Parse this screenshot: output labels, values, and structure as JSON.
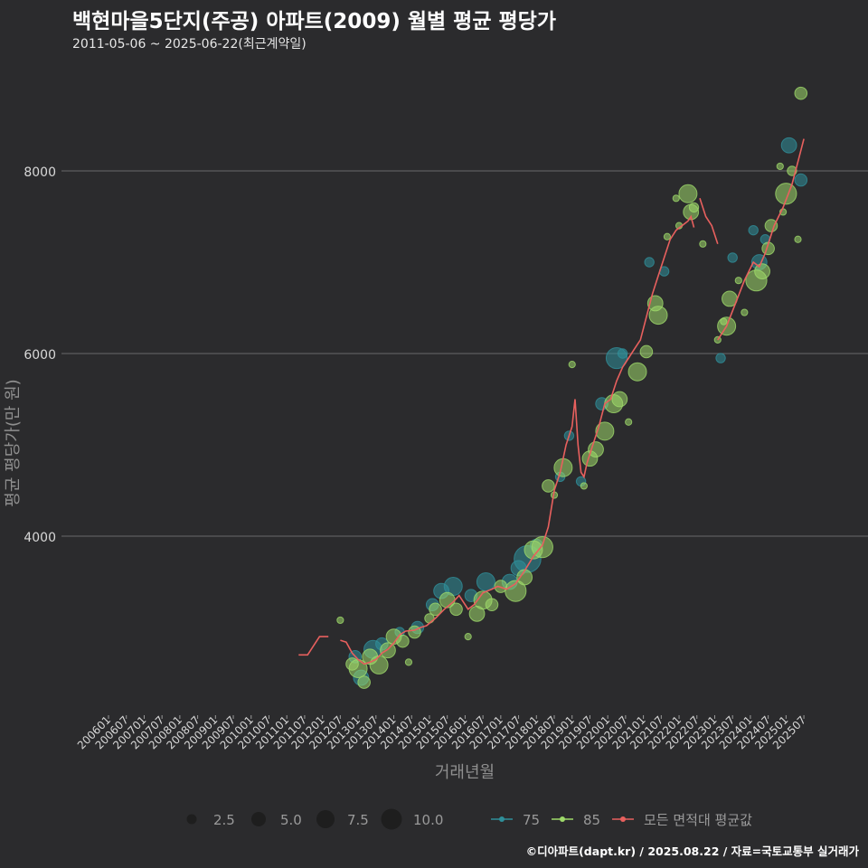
{
  "title": "백현마을5단지(주공) 아파트(2009) 월별 평균 평당가",
  "subtitle": "2011-05-06 ~ 2025-06-22(최근계약일)",
  "caption": "©디아파트(dapt.kr) / 2025.08.22 / 자료=국토교통부 실거래가",
  "colors": {
    "background": "#2b2b2d",
    "grid": "#6a6a6a",
    "area75": "#2f8f9a",
    "area85": "#9ed96a",
    "average_line": "#e8605e",
    "size_legend": "#1e1e1e"
  },
  "chart_data": {
    "type": "scatter",
    "xlabel": "거래년월",
    "ylabel": "평균 평당가(만 원)",
    "ylim": [
      2000,
      9000
    ],
    "yticks": [
      4000,
      6000,
      8000
    ],
    "x_tick_labels": [
      "200601",
      "200607",
      "200701",
      "200707",
      "200801",
      "200807",
      "200901",
      "200907",
      "201001",
      "201007",
      "201101",
      "201107",
      "201201",
      "201207",
      "201301",
      "201307",
      "201401",
      "201407",
      "201501",
      "201507",
      "201601",
      "201607",
      "201701",
      "201707",
      "201801",
      "201807",
      "201901",
      "201907",
      "202001",
      "202007",
      "202101",
      "202107",
      "202201",
      "202207",
      "202301",
      "202307",
      "202401",
      "202407",
      "202501",
      "202507"
    ],
    "size_legend": {
      "title": "",
      "values": [
        2.5,
        5.0,
        7.5,
        10.0
      ],
      "labels": [
        "2.5",
        "5.0",
        "7.5",
        "10.0"
      ]
    },
    "legend": {
      "position": "bottom",
      "labels": [
        "75",
        "85",
        "모든 면적대 평균값"
      ]
    },
    "series": [
      {
        "name": "75",
        "kind": "points",
        "points": [
          [
            "2012-12",
            2680,
            3
          ],
          [
            "2013-02",
            2450,
            4
          ],
          [
            "2013-06",
            2760,
            5
          ],
          [
            "2013-09",
            2820,
            3
          ],
          [
            "2014-03",
            2950,
            2
          ],
          [
            "2014-09",
            3000,
            3
          ],
          [
            "2015-02",
            3250,
            3
          ],
          [
            "2015-05",
            3400,
            4
          ],
          [
            "2015-09",
            3450,
            5
          ],
          [
            "2016-03",
            3350,
            3
          ],
          [
            "2016-08",
            3500,
            5
          ],
          [
            "2017-04",
            3500,
            4
          ],
          [
            "2017-07",
            3650,
            4
          ],
          [
            "2017-10",
            3750,
            8
          ],
          [
            "2018-01",
            3900,
            3
          ],
          [
            "2018-09",
            4650,
            2
          ],
          [
            "2018-12",
            5100,
            2
          ],
          [
            "2019-04",
            4600,
            2
          ],
          [
            "2019-11",
            5450,
            3
          ],
          [
            "2020-04",
            5950,
            6
          ],
          [
            "2020-06",
            6000,
            2
          ],
          [
            "2021-03",
            7000,
            2
          ],
          [
            "2021-08",
            6900,
            2
          ],
          [
            "2023-03",
            5950,
            2
          ],
          [
            "2023-07",
            7050,
            2
          ],
          [
            "2024-02",
            7350,
            2
          ],
          [
            "2024-04",
            7000,
            4
          ],
          [
            "2024-06",
            7250,
            2
          ],
          [
            "2025-02",
            8280,
            4
          ],
          [
            "2025-06",
            7900,
            3
          ]
        ]
      },
      {
        "name": "85",
        "kind": "points",
        "points": [
          [
            "2012-07",
            3080,
            1
          ],
          [
            "2012-11",
            2600,
            3
          ],
          [
            "2013-01",
            2550,
            5
          ],
          [
            "2013-03",
            2400,
            3
          ],
          [
            "2013-05",
            2680,
            4
          ],
          [
            "2013-08",
            2590,
            5
          ],
          [
            "2013-11",
            2750,
            4
          ],
          [
            "2014-01",
            2900,
            4
          ],
          [
            "2014-04",
            2850,
            3
          ],
          [
            "2014-06",
            2620,
            1
          ],
          [
            "2014-08",
            2950,
            3
          ],
          [
            "2015-01",
            3100,
            2
          ],
          [
            "2015-03",
            3200,
            3
          ],
          [
            "2015-07",
            3300,
            4
          ],
          [
            "2015-10",
            3200,
            3
          ],
          [
            "2016-02",
            2900,
            1
          ],
          [
            "2016-05",
            3150,
            4
          ],
          [
            "2016-07",
            3300,
            5
          ],
          [
            "2016-10",
            3250,
            3
          ],
          [
            "2017-01",
            3450,
            3
          ],
          [
            "2017-06",
            3400,
            6
          ],
          [
            "2017-09",
            3550,
            4
          ],
          [
            "2017-12",
            3850,
            5
          ],
          [
            "2018-03",
            3880,
            6
          ],
          [
            "2018-05",
            4550,
            3
          ],
          [
            "2018-07",
            4450,
            1
          ],
          [
            "2018-10",
            4750,
            5
          ],
          [
            "2019-01",
            5880,
            1
          ],
          [
            "2019-05",
            4550,
            1
          ],
          [
            "2019-07",
            4850,
            4
          ],
          [
            "2019-09",
            4950,
            4
          ],
          [
            "2019-12",
            5150,
            5
          ],
          [
            "2020-03",
            5450,
            5
          ],
          [
            "2020-05",
            5500,
            4
          ],
          [
            "2020-08",
            5250,
            1
          ],
          [
            "2020-11",
            5800,
            5
          ],
          [
            "2021-02",
            6020,
            3
          ],
          [
            "2021-05",
            6550,
            4
          ],
          [
            "2021-06",
            6420,
            5
          ],
          [
            "2021-09",
            7280,
            1
          ],
          [
            "2021-12",
            7700,
            1
          ],
          [
            "2022-01",
            7400,
            1
          ],
          [
            "2022-04",
            7750,
            5
          ],
          [
            "2022-05",
            7550,
            4
          ],
          [
            "2022-06",
            7600,
            2
          ],
          [
            "2022-09",
            7200,
            1
          ],
          [
            "2023-02",
            6150,
            1
          ],
          [
            "2023-04",
            6350,
            1
          ],
          [
            "2023-05",
            6300,
            5
          ],
          [
            "2023-06",
            6600,
            4
          ],
          [
            "2023-09",
            6800,
            1
          ],
          [
            "2023-11",
            6450,
            1
          ],
          [
            "2024-03",
            6800,
            6
          ],
          [
            "2024-05",
            6900,
            4
          ],
          [
            "2024-07",
            7150,
            3
          ],
          [
            "2024-08",
            7400,
            3
          ],
          [
            "2024-11",
            8050,
            1
          ],
          [
            "2024-12",
            7550,
            1
          ],
          [
            "2025-01",
            7750,
            6
          ],
          [
            "2025-03",
            8000,
            2
          ],
          [
            "2025-05",
            7250,
            1
          ],
          [
            "2025-06",
            8850,
            3
          ]
        ]
      },
      {
        "name": "모든 면적대 평균값",
        "kind": "line",
        "segments": [
          [
            [
              "2011-05",
              2700
            ],
            [
              "2011-08",
              2700
            ],
            [
              "2011-10",
              2800
            ],
            [
              "2011-12",
              2900
            ],
            [
              "2012-03",
              2900
            ]
          ],
          [
            [
              "2012-07",
              2860
            ],
            [
              "2012-09",
              2840
            ],
            [
              "2012-11",
              2720
            ],
            [
              "2013-01",
              2650
            ],
            [
              "2013-03",
              2600
            ],
            [
              "2013-05",
              2620
            ],
            [
              "2013-07",
              2650
            ],
            [
              "2013-09",
              2720
            ],
            [
              "2013-11",
              2760
            ],
            [
              "2014-01",
              2830
            ],
            [
              "2014-03",
              2920
            ],
            [
              "2014-05",
              2960
            ],
            [
              "2014-08",
              2970
            ],
            [
              "2014-10",
              3000
            ],
            [
              "2014-12",
              3020
            ],
            [
              "2015-03",
              3100
            ],
            [
              "2015-06",
              3200
            ],
            [
              "2015-09",
              3280
            ],
            [
              "2015-11",
              3350
            ],
            [
              "2016-02",
              3200
            ],
            [
              "2016-04",
              3250
            ],
            [
              "2016-07",
              3380
            ],
            [
              "2016-10",
              3420
            ],
            [
              "2016-12",
              3450
            ],
            [
              "2017-03",
              3420
            ],
            [
              "2017-06",
              3480
            ],
            [
              "2017-09",
              3620
            ],
            [
              "2017-12",
              3780
            ],
            [
              "2018-03",
              3900
            ],
            [
              "2018-05",
              4100
            ],
            [
              "2018-07",
              4500
            ],
            [
              "2018-09",
              4700
            ],
            [
              "2018-11",
              5000
            ],
            [
              "2019-01",
              5200
            ],
            [
              "2019-02",
              5500
            ],
            [
              "2019-03",
              5000
            ],
            [
              "2019-04",
              4700
            ],
            [
              "2019-05",
              4650
            ],
            [
              "2019-06",
              4800
            ],
            [
              "2019-08",
              5000
            ],
            [
              "2019-10",
              5200
            ],
            [
              "2019-12",
              5450
            ],
            [
              "2020-02",
              5500
            ],
            [
              "2020-04",
              5700
            ],
            [
              "2020-06",
              5850
            ],
            [
              "2020-08",
              5950
            ],
            [
              "2020-10",
              6050
            ],
            [
              "2020-12",
              6150
            ],
            [
              "2021-02",
              6400
            ],
            [
              "2021-04",
              6650
            ],
            [
              "2021-06",
              6850
            ],
            [
              "2021-08",
              7050
            ],
            [
              "2021-10",
              7250
            ],
            [
              "2021-12",
              7350
            ],
            [
              "2022-02",
              7400
            ],
            [
              "2022-04",
              7450
            ],
            [
              "2022-05",
              7500
            ],
            [
              "2022-06",
              7380
            ]
          ],
          [
            [
              "2022-08",
              7700
            ],
            [
              "2022-10",
              7500
            ],
            [
              "2022-12",
              7400
            ],
            [
              "2023-02",
              7200
            ]
          ],
          [
            [
              "2023-02",
              6150
            ],
            [
              "2023-05",
              6300
            ],
            [
              "2023-08",
              6550
            ],
            [
              "2023-11",
              6800
            ],
            [
              "2024-02",
              7000
            ],
            [
              "2024-04",
              6950
            ],
            [
              "2024-06",
              7100
            ],
            [
              "2024-09",
              7400
            ],
            [
              "2024-12",
              7600
            ],
            [
              "2025-03",
              7850
            ],
            [
              "2025-05",
              8100
            ],
            [
              "2025-07",
              8350
            ]
          ]
        ]
      }
    ]
  }
}
